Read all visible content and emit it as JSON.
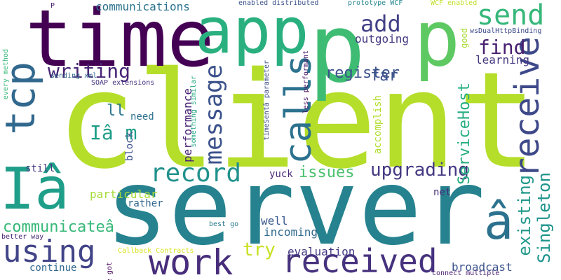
{
  "words": [
    {
      "text": "client",
      "color": "#b5de2b"
    },
    {
      "text": "server",
      "color": "#26828e"
    },
    {
      "text": "time",
      "color": "#440154"
    },
    {
      "text": "app",
      "color": "#2ab07f"
    },
    {
      "text": "p",
      "color": "#3fbc73"
    },
    {
      "text": "p",
      "color": "#5ec962"
    },
    {
      "text": "tcp",
      "color": "#31688e"
    },
    {
      "text": "Iâ",
      "color": "#1f9e89"
    },
    {
      "text": "calls",
      "color": "#2c728e"
    },
    {
      "text": "receive",
      "color": "#3e4989"
    },
    {
      "text": "send",
      "color": "#35b779"
    },
    {
      "text": "message",
      "color": "#3b528b"
    },
    {
      "text": "received",
      "color": "#46327e"
    },
    {
      "text": "work",
      "color": "#472d7b"
    },
    {
      "text": "â",
      "color": "#2c728e"
    },
    {
      "text": "using",
      "color": "#414487"
    },
    {
      "text": "record",
      "color": "#21918c"
    },
    {
      "text": "upgrading",
      "color": "#443983"
    },
    {
      "text": "Iâ m",
      "color": "#1f9e89"
    },
    {
      "text": "writing",
      "color": "#482475"
    },
    {
      "text": "add",
      "color": "#424086"
    },
    {
      "text": "find",
      "color": "#481f70"
    },
    {
      "text": "issues",
      "color": "#4ac16d"
    },
    {
      "text": "register",
      "color": "#3b528b"
    },
    {
      "text": "existing",
      "color": "#1f988b"
    },
    {
      "text": "Singleton",
      "color": "#1f948c"
    },
    {
      "text": "ServiceHost",
      "color": "#26ad81"
    },
    {
      "text": "try",
      "color": "#c8e020"
    },
    {
      "text": "communicateâ",
      "color": "#37b878"
    },
    {
      "text": "far",
      "color": "#3b528b"
    },
    {
      "text": "ll",
      "color": "#2a788e"
    },
    {
      "text": "performance",
      "color": "#482173"
    },
    {
      "text": "outgoing",
      "color": "#453882"
    },
    {
      "text": "learning",
      "color": "#453882"
    },
    {
      "text": "broadcast",
      "color": "#3b528b"
    },
    {
      "text": "evaluation",
      "color": "#443a83"
    },
    {
      "text": "incoming",
      "color": "#306a8e"
    },
    {
      "text": "well",
      "color": "#38588c"
    },
    {
      "text": "communications",
      "color": "#2c728e"
    },
    {
      "text": "need",
      "color": "#2d718e"
    },
    {
      "text": "block",
      "color": "#3b528b"
    },
    {
      "text": "particular",
      "color": "#a5db36"
    },
    {
      "text": "still",
      "color": "#453781"
    },
    {
      "text": "rather",
      "color": "#32658e"
    },
    {
      "text": "continue",
      "color": "#31688e"
    },
    {
      "text": "yuck",
      "color": "#482878"
    },
    {
      "text": "net",
      "color": "#472c7a"
    },
    {
      "text": "accomplish",
      "color": "#b2dd2d"
    },
    {
      "text": "good",
      "color": "#a8db34"
    },
    {
      "text": "enabled distributed",
      "color": "#3b528b"
    },
    {
      "text": "prototype WCF",
      "color": "#25858e"
    },
    {
      "text": "WCF enabled",
      "color": "#c0df25"
    },
    {
      "text": "wsDualHttpBinding",
      "color": "#3e4c8a"
    },
    {
      "text": "SOAP extensions",
      "color": "#46337f"
    },
    {
      "text": "sending xml",
      "color": "#31688e"
    },
    {
      "text": "something similar",
      "color": "#22a785"
    },
    {
      "text": "timeSentâ parameter",
      "color": "#3d4e8a"
    },
    {
      "text": "less performant",
      "color": "#481467"
    },
    {
      "text": "every method",
      "color": "#37b878"
    },
    {
      "text": "better way",
      "color": "#482576"
    },
    {
      "text": "best go",
      "color": "#297b8e"
    },
    {
      "text": "Callback Contracts",
      "color": "#d8e219"
    },
    {
      "text": "ve got",
      "color": "#46085c"
    },
    {
      "text": "connect multiple",
      "color": "#482071"
    },
    {
      "text": "P",
      "color": "#481b6d"
    }
  ]
}
